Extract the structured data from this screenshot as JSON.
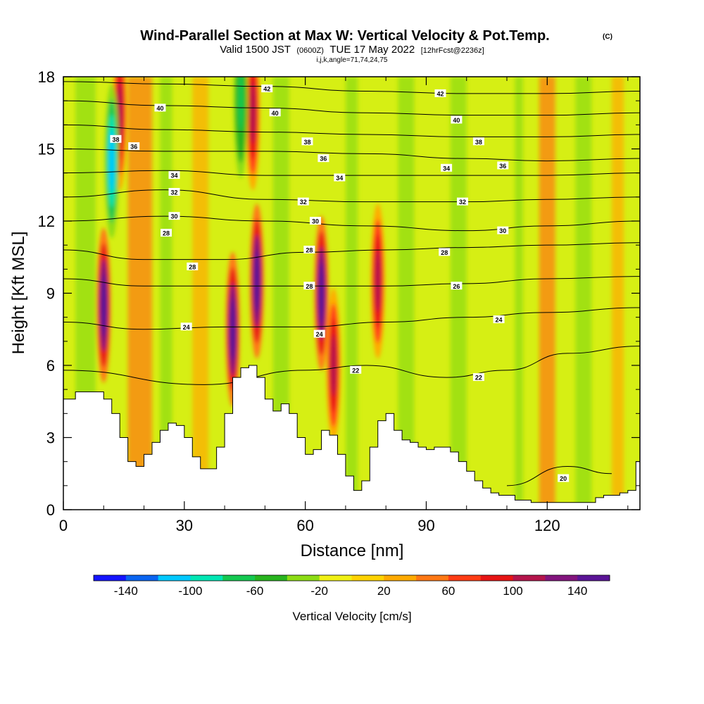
{
  "header": {
    "title": "Wind-Parallel Section at Max W: Vertical Velocity & Pot.Temp.",
    "title_mark": "(C)",
    "sub_valid": "Valid 1500 JST",
    "sub_zulu": "(0600Z)",
    "sub_date": "TUE 17 May 2022",
    "sub_fcst": "[12hrFcst@2236z]",
    "indices": "i,j,k,angle=71,74,24,75"
  },
  "chart_data": {
    "type": "heatmap",
    "title": "Wind-Parallel Section at Max W: Vertical Velocity & Pot.Temp.",
    "xlabel": "Distance [nm]",
    "ylabel": "Height [Kft MSL]",
    "xlim": [
      0,
      143
    ],
    "ylim": [
      0,
      18
    ],
    "x_ticks": [
      "0",
      "30",
      "60",
      "90",
      "120"
    ],
    "y_ticks": [
      "0",
      "3",
      "6",
      "9",
      "12",
      "15",
      "18"
    ],
    "colorbar": {
      "label": "Vertical Velocity [cm/s]",
      "ticks": [
        "-140",
        "-100",
        "-60",
        "-20",
        "20",
        "60",
        "100",
        "140"
      ],
      "bounds": [
        -160,
        160
      ],
      "colors": [
        "#1414ff",
        "#0a64f0",
        "#00c8ff",
        "#00e6b4",
        "#14c850",
        "#28b41e",
        "#8cdc14",
        "#f0f014",
        "#ffd200",
        "#ffaa00",
        "#ff7814",
        "#ff3c14",
        "#e61414",
        "#b4144b",
        "#82147d",
        "#5a1496"
      ]
    },
    "updraft_cores": [
      {
        "x": 10,
        "z": 8.5,
        "w": 150
      },
      {
        "x": 14,
        "z": 16.5,
        "w": 110
      },
      {
        "x": 42,
        "z": 7.5,
        "w": 160
      },
      {
        "x": 48,
        "z": 9.5,
        "w": 160
      },
      {
        "x": 47,
        "z": 16.5,
        "w": 100
      },
      {
        "x": 64,
        "z": 9.0,
        "w": 160
      },
      {
        "x": 67,
        "z": 6.0,
        "w": 100
      },
      {
        "x": 78,
        "z": 9.5,
        "w": 110
      }
    ],
    "downdraft_cores": [
      {
        "x": 12,
        "z": 14.5,
        "w": -110
      },
      {
        "x": 44,
        "z": 17.0,
        "w": -70
      }
    ],
    "isentropes": [
      {
        "value": 20,
        "label": "20",
        "points": [
          [
            110,
            1.0
          ],
          [
            125,
            1.8
          ],
          [
            136,
            1.5
          ]
        ]
      },
      {
        "value": 22,
        "label": "22",
        "points": [
          [
            0,
            5.8
          ],
          [
            35,
            5.2
          ],
          [
            60,
            5.8
          ],
          [
            75,
            6.0
          ],
          [
            95,
            5.5
          ],
          [
            110,
            5.8
          ],
          [
            125,
            6.5
          ],
          [
            143,
            6.8
          ]
        ]
      },
      {
        "value": 24,
        "label": "24",
        "points": [
          [
            0,
            7.8
          ],
          [
            20,
            7.5
          ],
          [
            40,
            7.6
          ],
          [
            60,
            7.6
          ],
          [
            80,
            7.8
          ],
          [
            100,
            8.0
          ],
          [
            120,
            8.2
          ],
          [
            143,
            8.4
          ]
        ]
      },
      {
        "value": 26,
        "label": "26",
        "points": [
          [
            0,
            9.6
          ],
          [
            20,
            9.3
          ],
          [
            40,
            9.3
          ],
          [
            60,
            9.3
          ],
          [
            80,
            9.3
          ],
          [
            100,
            9.4
          ],
          [
            120,
            9.6
          ],
          [
            143,
            9.7
          ]
        ]
      },
      {
        "value": 28,
        "label": "28",
        "points": [
          [
            0,
            10.8
          ],
          [
            20,
            10.4
          ],
          [
            40,
            10.4
          ],
          [
            60,
            10.7
          ],
          [
            80,
            10.8
          ],
          [
            100,
            10.9
          ],
          [
            120,
            11.0
          ],
          [
            143,
            11.1
          ]
        ]
      },
      {
        "value": 30,
        "label": "30",
        "points": [
          [
            0,
            12.0
          ],
          [
            25,
            12.2
          ],
          [
            50,
            12.0
          ],
          [
            75,
            11.8
          ],
          [
            100,
            11.6
          ],
          [
            120,
            11.8
          ],
          [
            143,
            12.0
          ]
        ]
      },
      {
        "value": 32,
        "label": "32",
        "points": [
          [
            0,
            13.0
          ],
          [
            25,
            13.3
          ],
          [
            50,
            12.9
          ],
          [
            75,
            12.8
          ],
          [
            100,
            12.8
          ],
          [
            120,
            12.9
          ],
          [
            143,
            13.0
          ]
        ]
      },
      {
        "value": 34,
        "label": "34",
        "points": [
          [
            0,
            14.0
          ],
          [
            25,
            14.1
          ],
          [
            50,
            13.9
          ],
          [
            75,
            13.9
          ],
          [
            100,
            13.9
          ],
          [
            120,
            13.9
          ],
          [
            143,
            14.0
          ]
        ]
      },
      {
        "value": 36,
        "label": "36",
        "points": [
          [
            0,
            15.0
          ],
          [
            25,
            14.9
          ],
          [
            50,
            14.9
          ],
          [
            75,
            14.8
          ],
          [
            100,
            14.6
          ],
          [
            120,
            14.5
          ],
          [
            143,
            14.6
          ]
        ]
      },
      {
        "value": 38,
        "label": "38",
        "points": [
          [
            0,
            16.0
          ],
          [
            25,
            15.8
          ],
          [
            50,
            15.7
          ],
          [
            75,
            15.6
          ],
          [
            100,
            15.5
          ],
          [
            120,
            15.5
          ],
          [
            143,
            15.6
          ]
        ]
      },
      {
        "value": 40,
        "label": "40",
        "points": [
          [
            0,
            17.0
          ],
          [
            25,
            16.8
          ],
          [
            50,
            16.7
          ],
          [
            75,
            16.5
          ],
          [
            100,
            16.4
          ],
          [
            120,
            16.4
          ],
          [
            143,
            16.5
          ]
        ]
      },
      {
        "value": 42,
        "label": "42",
        "points": [
          [
            0,
            17.8
          ],
          [
            25,
            17.7
          ],
          [
            50,
            17.6
          ],
          [
            75,
            17.4
          ],
          [
            100,
            17.3
          ],
          [
            120,
            17.3
          ],
          [
            143,
            17.4
          ]
        ]
      }
    ],
    "contour_labels": [
      {
        "text": "42",
        "x": 50.5,
        "z": 17.5
      },
      {
        "text": "42",
        "x": 93.5,
        "z": 17.3
      },
      {
        "text": "40",
        "x": 24,
        "z": 16.7
      },
      {
        "text": "40",
        "x": 52.5,
        "z": 16.5
      },
      {
        "text": "40",
        "x": 97.5,
        "z": 16.2
      },
      {
        "text": "38",
        "x": 13,
        "z": 15.4
      },
      {
        "text": "38",
        "x": 60.5,
        "z": 15.3
      },
      {
        "text": "38",
        "x": 103,
        "z": 15.3
      },
      {
        "text": "36",
        "x": 17.5,
        "z": 15.1
      },
      {
        "text": "36",
        "x": 64.5,
        "z": 14.6
      },
      {
        "text": "36",
        "x": 109,
        "z": 14.3
      },
      {
        "text": "34",
        "x": 27.5,
        "z": 13.9
      },
      {
        "text": "34",
        "x": 68.5,
        "z": 13.8
      },
      {
        "text": "34",
        "x": 95,
        "z": 14.2
      },
      {
        "text": "32",
        "x": 27.5,
        "z": 13.2
      },
      {
        "text": "32",
        "x": 59.5,
        "z": 12.8
      },
      {
        "text": "32",
        "x": 99,
        "z": 12.8
      },
      {
        "text": "30",
        "x": 27.5,
        "z": 12.2
      },
      {
        "text": "30",
        "x": 62.5,
        "z": 12.0
      },
      {
        "text": "30",
        "x": 109,
        "z": 11.6
      },
      {
        "text": "28",
        "x": 25.5,
        "z": 11.5
      },
      {
        "text": "28",
        "x": 61,
        "z": 10.8
      },
      {
        "text": "28",
        "x": 94.5,
        "z": 10.7
      },
      {
        "text": "28",
        "x": 32,
        "z": 10.1
      },
      {
        "text": "28",
        "x": 61,
        "z": 9.3
      },
      {
        "text": "26",
        "x": 97.5,
        "z": 9.3
      },
      {
        "text": "24",
        "x": 30.5,
        "z": 7.6
      },
      {
        "text": "24",
        "x": 63.5,
        "z": 7.3
      },
      {
        "text": "24",
        "x": 108,
        "z": 7.9
      },
      {
        "text": "22",
        "x": 72.5,
        "z": 5.8
      },
      {
        "text": "22",
        "x": 103,
        "z": 5.5
      },
      {
        "text": "20",
        "x": 124,
        "z": 1.3
      }
    ],
    "terrain": [
      [
        0,
        4.6
      ],
      [
        3,
        4.9
      ],
      [
        8,
        4.9
      ],
      [
        10,
        4.6
      ],
      [
        12,
        4.0
      ],
      [
        14,
        3.0
      ],
      [
        16,
        2.0
      ],
      [
        18,
        1.8
      ],
      [
        20,
        2.3
      ],
      [
        22,
        2.8
      ],
      [
        24,
        3.3
      ],
      [
        26,
        3.6
      ],
      [
        28,
        3.5
      ],
      [
        30,
        3.0
      ],
      [
        32,
        2.2
      ],
      [
        34,
        1.7
      ],
      [
        36,
        1.7
      ],
      [
        38,
        2.6
      ],
      [
        40,
        4.0
      ],
      [
        42,
        5.5
      ],
      [
        44,
        5.9
      ],
      [
        46,
        6.0
      ],
      [
        48,
        5.5
      ],
      [
        50,
        4.6
      ],
      [
        52,
        4.1
      ],
      [
        54,
        4.4
      ],
      [
        56,
        4.0
      ],
      [
        58,
        3.0
      ],
      [
        60,
        2.3
      ],
      [
        62,
        2.5
      ],
      [
        64,
        3.3
      ],
      [
        66,
        3.1
      ],
      [
        68,
        2.3
      ],
      [
        70,
        1.4
      ],
      [
        72,
        0.8
      ],
      [
        74,
        1.2
      ],
      [
        76,
        2.6
      ],
      [
        78,
        3.7
      ],
      [
        80,
        4.0
      ],
      [
        82,
        3.3
      ],
      [
        84,
        2.9
      ],
      [
        86,
        2.8
      ],
      [
        88,
        2.6
      ],
      [
        90,
        2.5
      ],
      [
        92,
        2.6
      ],
      [
        94,
        2.6
      ],
      [
        96,
        2.4
      ],
      [
        98,
        2.0
      ],
      [
        100,
        1.6
      ],
      [
        102,
        1.2
      ],
      [
        104,
        0.9
      ],
      [
        106,
        0.7
      ],
      [
        108,
        0.6
      ],
      [
        110,
        0.6
      ],
      [
        112,
        0.4
      ],
      [
        114,
        0.4
      ],
      [
        116,
        0.3
      ],
      [
        118,
        0.3
      ],
      [
        120,
        0.3
      ],
      [
        122,
        0.3
      ],
      [
        124,
        0.3
      ],
      [
        126,
        0.3
      ],
      [
        128,
        0.3
      ],
      [
        130,
        0.3
      ],
      [
        132,
        0.5
      ],
      [
        134,
        0.6
      ],
      [
        136,
        0.6
      ],
      [
        138,
        0.7
      ],
      [
        140,
        0.8
      ],
      [
        142,
        2.0
      ],
      [
        143,
        2.0
      ]
    ]
  }
}
